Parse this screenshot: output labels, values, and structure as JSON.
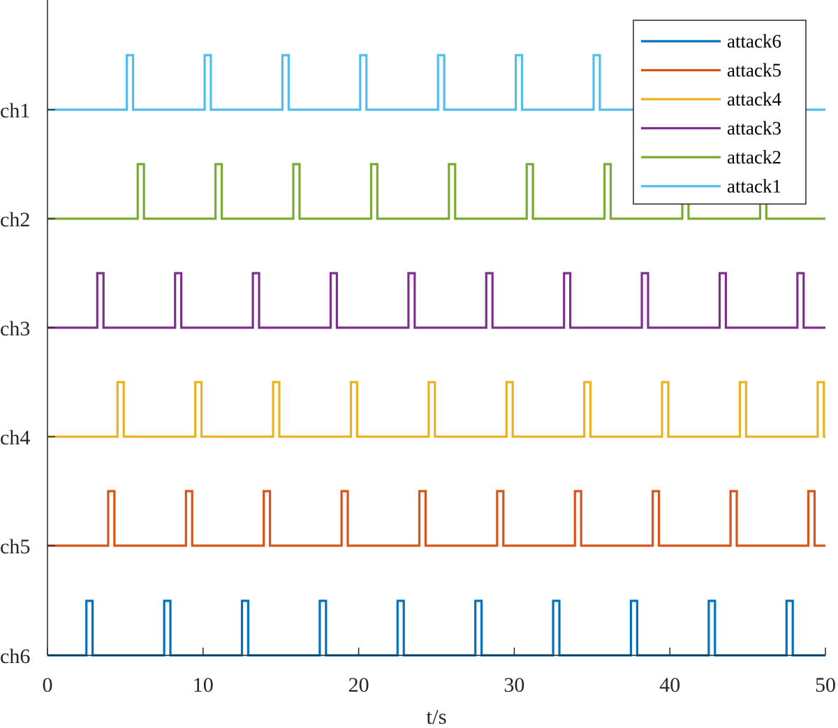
{
  "chart_data": {
    "type": "line",
    "title": "",
    "xlabel": "t/s",
    "ylabel": "",
    "xlim": [
      0,
      50
    ],
    "x_ticks": [
      "0",
      "10",
      "20",
      "30",
      "40",
      "50"
    ],
    "y_tick_labels": [
      "ch1",
      "ch2",
      "ch3",
      "ch4",
      "ch5",
      "ch6"
    ],
    "grid": false,
    "legend_position": "top-right",
    "legend_order": [
      "attack6",
      "attack5",
      "attack4",
      "attack3",
      "attack2",
      "attack1"
    ],
    "pulse_width": 0.4,
    "series": [
      {
        "name": "attack1",
        "channel": "ch1",
        "color": "#4DBEEE",
        "pulse_starts": [
          5.1,
          10.1,
          15.1,
          20.1,
          25.1,
          30.1,
          35.1,
          40.1,
          45.1
        ]
      },
      {
        "name": "attack2",
        "channel": "ch2",
        "color": "#77AC30",
        "pulse_starts": [
          5.8,
          10.8,
          15.8,
          20.8,
          25.8,
          30.8,
          35.8,
          40.8,
          45.8
        ]
      },
      {
        "name": "attack3",
        "channel": "ch3",
        "color": "#7E2F8E",
        "pulse_starts": [
          3.2,
          8.2,
          13.2,
          18.2,
          23.2,
          28.2,
          33.2,
          38.2,
          43.2,
          48.2
        ]
      },
      {
        "name": "attack4",
        "channel": "ch4",
        "color": "#EDB120",
        "pulse_starts": [
          4.5,
          9.5,
          14.5,
          19.5,
          24.5,
          29.5,
          34.5,
          39.5,
          44.5,
          49.5
        ]
      },
      {
        "name": "attack5",
        "channel": "ch5",
        "color": "#D95319",
        "pulse_starts": [
          3.9,
          8.9,
          13.9,
          18.9,
          23.9,
          28.9,
          33.9,
          38.9,
          43.9,
          48.9
        ]
      },
      {
        "name": "attack6",
        "channel": "ch6",
        "color": "#0072BD",
        "pulse_starts": [
          2.5,
          7.5,
          12.5,
          17.5,
          22.5,
          27.5,
          32.5,
          37.5,
          42.5,
          47.5
        ]
      }
    ]
  }
}
